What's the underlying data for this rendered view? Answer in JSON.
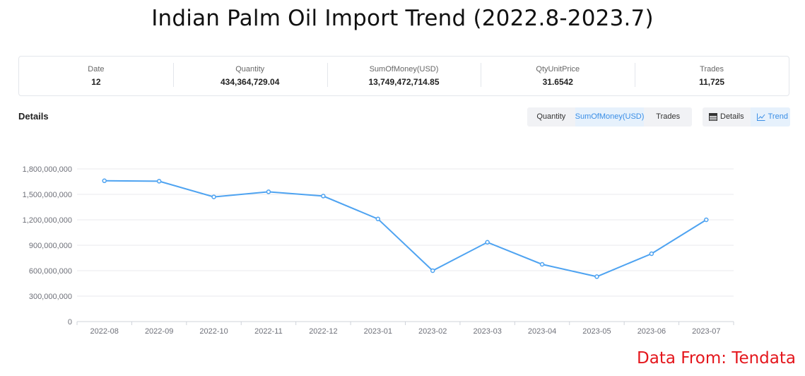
{
  "page": {
    "title": "Indian Palm Oil Import Trend (2022.8-2023.7)"
  },
  "summary": [
    {
      "label": "Date",
      "value": "12"
    },
    {
      "label": "Quantity",
      "value": "434,364,729.04"
    },
    {
      "label": "SumOfMoney(USD)",
      "value": "13,749,472,714.85"
    },
    {
      "label": "QtyUnitPrice",
      "value": "31.6542"
    },
    {
      "label": "Trades",
      "value": "11,725"
    }
  ],
  "details": {
    "heading": "Details",
    "metric_tabs": [
      "Quantity",
      "SumOfMoney(USD)",
      "Trades"
    ],
    "active_metric": "SumOfMoney(USD)",
    "view_tabs": [
      {
        "label": "Details",
        "icon": "table-icon"
      },
      {
        "label": "Trend",
        "icon": "line-chart-icon"
      }
    ],
    "active_view": "Trend"
  },
  "chart_data": {
    "type": "line",
    "title": "",
    "xlabel": "",
    "ylabel": "",
    "categories": [
      "2022-08",
      "2022-09",
      "2022-10",
      "2022-11",
      "2022-12",
      "2023-01",
      "2023-02",
      "2023-03",
      "2023-04",
      "2023-05",
      "2023-06",
      "2023-07"
    ],
    "series": [
      {
        "values": [
          1660000000,
          1655000000,
          1470000000,
          1530000000,
          1480000000,
          1210000000,
          600000000,
          935000000,
          675000000,
          530000000,
          800000000,
          1200000000
        ]
      }
    ],
    "ylim": [
      0,
      1800000000
    ],
    "yticks": [
      "0",
      "300,000,000",
      "600,000,000",
      "900,000,000",
      "1,200,000,000",
      "1,500,000,000",
      "1,800,000,000"
    ],
    "ytick_values": [
      0,
      300000000,
      600000000,
      900000000,
      1200000000,
      1500000000,
      1800000000
    ],
    "grid": true,
    "legend": "none",
    "line_color": "#4ea3f1",
    "grid_color": "#e8eaed",
    "axis_color": "#cfd3da",
    "label_color": "#6e7079"
  },
  "footer": {
    "source": "Data From: Tendata"
  },
  "colors": {
    "accent": "#3a8ee6",
    "source_text": "#e4161c"
  }
}
